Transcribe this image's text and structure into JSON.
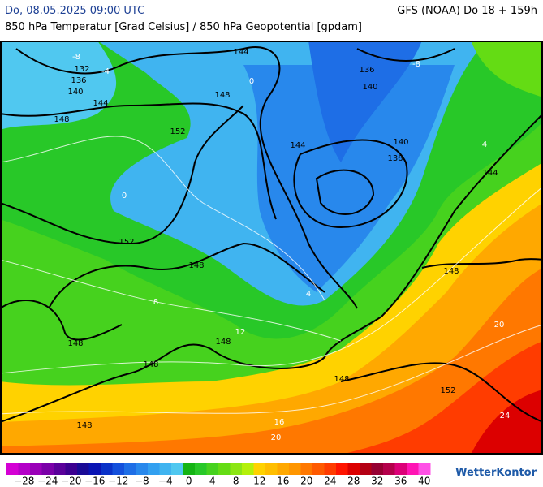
{
  "header": {
    "valid_time": "Do, 08.05.2025 09:00 UTC",
    "model_run": "GFS (NOAA) Do 18 + 159h",
    "title": "850 hPa Temperatur [Grad Celsius] / 850 hPa Geopotential [gpdam]"
  },
  "geopotential_labels": [
    144,
    132,
    136,
    140,
    144,
    148,
    148,
    152,
    144,
    136,
    140,
    140,
    136,
    144,
    152,
    148,
    148,
    148,
    148,
    148,
    148,
    152,
    148
  ],
  "isotherm_labels": [
    -8,
    -4,
    0,
    0,
    4,
    8,
    12,
    16,
    20,
    20,
    24,
    -8,
    4
  ],
  "legend": {
    "labels": [
      "−28",
      "−24",
      "−20",
      "−16",
      "−12",
      "−8",
      "−4",
      "0",
      "4",
      "8",
      "12",
      "16",
      "20",
      "24",
      "28",
      "32",
      "36",
      "40"
    ],
    "colors": [
      "#d400d4",
      "#b400c8",
      "#9a00b8",
      "#7a00a8",
      "#5a009a",
      "#3c0090",
      "#1a0a96",
      "#0a14b4",
      "#0a32c8",
      "#1450dc",
      "#1e6ee6",
      "#2888ec",
      "#32a0f0",
      "#40b4f0",
      "#50c8f0",
      "#14b414",
      "#28c828",
      "#46d21e",
      "#64dc14",
      "#8ce614",
      "#b4f00a",
      "#ffd200",
      "#ffbe00",
      "#ffa800",
      "#ff9600",
      "#ff7800",
      "#ff5a00",
      "#ff3c00",
      "#ff1400",
      "#dc0000",
      "#b40014",
      "#960032",
      "#b4004b",
      "#dc0078",
      "#ff14b4",
      "#ff50e6"
    ]
  },
  "brand": "WetterKontor"
}
